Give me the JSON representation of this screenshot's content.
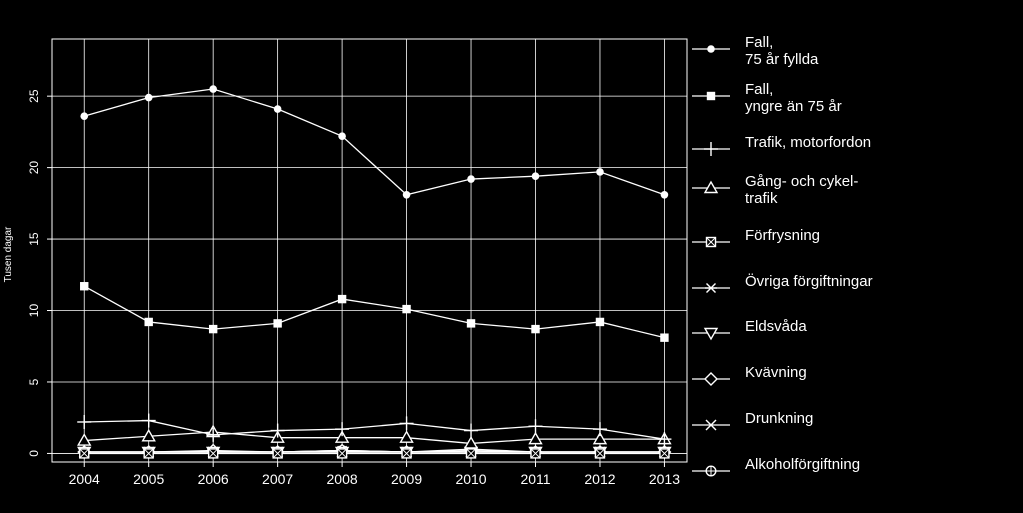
{
  "chart_data": {
    "type": "line",
    "title": "",
    "xlabel": "",
    "ylabel": "Tusen dagar",
    "x": [
      2004,
      2005,
      2006,
      2007,
      2008,
      2009,
      2010,
      2011,
      2012,
      2013
    ],
    "xlim": [
      2003.5,
      2013.35
    ],
    "ylim": [
      -0.6,
      29
    ],
    "yticks": [
      0,
      5,
      10,
      15,
      20,
      25
    ],
    "grid": true,
    "legend_position": "right",
    "colors": {
      "background": "#000000",
      "line": "#ffffff",
      "grid": "#ffffff"
    },
    "series": [
      {
        "name": "Fall,\n75 år fyllda",
        "marker": "circle",
        "values": [
          23.6,
          24.9,
          25.5,
          24.1,
          22.2,
          18.1,
          19.2,
          19.4,
          19.7,
          18.1
        ]
      },
      {
        "name": "Fall,\nyngre än 75 år",
        "marker": "square",
        "values": [
          11.7,
          9.2,
          8.7,
          9.1,
          10.8,
          10.1,
          9.1,
          8.7,
          9.2,
          8.1
        ]
      },
      {
        "name": "Trafik, motorfordon",
        "marker": "plus",
        "values": [
          2.2,
          2.3,
          1.3,
          1.6,
          1.7,
          2.1,
          1.6,
          1.9,
          1.7,
          1.0
        ]
      },
      {
        "name": "Gång- och cykel-\ntrafik",
        "marker": "triangle-up",
        "values": [
          0.9,
          1.2,
          1.5,
          1.1,
          1.1,
          1.1,
          0.7,
          1.0,
          1.0,
          1.0
        ]
      },
      {
        "name": "Förfrysning",
        "marker": "boxed-x",
        "values": [
          0.0,
          0.0,
          0.0,
          0.0,
          0.0,
          0.0,
          0.0,
          0.0,
          0.0,
          0.0
        ]
      },
      {
        "name": "Övriga förgiftningar",
        "marker": "asterisk",
        "values": [
          0.1,
          0.1,
          0.1,
          0.1,
          0.2,
          0.1,
          0.2,
          0.1,
          0.1,
          0.1
        ]
      },
      {
        "name": "Eldsvåda",
        "marker": "triangle-down",
        "values": [
          0.1,
          0.1,
          0.1,
          0.1,
          0.1,
          0.1,
          0.1,
          0.1,
          0.1,
          0.1
        ]
      },
      {
        "name": "Kvävning",
        "marker": "diamond",
        "values": [
          0.1,
          0.1,
          0.2,
          0.1,
          0.2,
          0.1,
          0.1,
          0.1,
          0.1,
          0.1
        ]
      },
      {
        "name": "Drunkning",
        "marker": "x",
        "values": [
          0.1,
          0.1,
          0.1,
          0.1,
          0.1,
          0.1,
          0.1,
          0.1,
          0.1,
          0.1
        ]
      },
      {
        "name": "Alkoholförgiftning",
        "marker": "circle-plus",
        "values": [
          0.1,
          0.1,
          0.1,
          0.1,
          0.2,
          0.1,
          0.3,
          0.1,
          0.1,
          0.1
        ]
      }
    ]
  }
}
